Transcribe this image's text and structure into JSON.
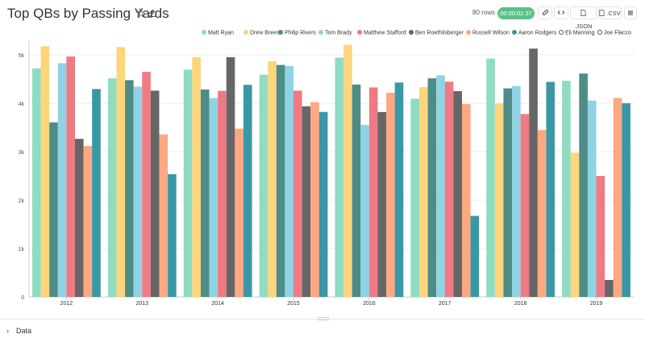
{
  "header": {
    "title": "Top QBs by Passing Yards",
    "rows": "80 rows",
    "timer": "00:00:02.37",
    "json_label": ".JSON",
    "csv_label": ".CSV"
  },
  "icons": {
    "star": "star-icon",
    "edit": "edit-icon",
    "link": "link-icon",
    "code": "code-icon",
    "menu": "menu-icon"
  },
  "footer": {
    "data_label": "Data"
  },
  "chart_data": {
    "type": "bar",
    "title": "Top QBs by Passing Yards",
    "categories": [
      "2012",
      "2013",
      "2014",
      "2015",
      "2016",
      "2017",
      "2018",
      "2019"
    ],
    "yticks": [
      0,
      1000,
      2000,
      3000,
      4000,
      5000
    ],
    "ytick_labels": [
      "0",
      "1k",
      "2k",
      "3k",
      "4k",
      "5k"
    ],
    "ylim": [
      0,
      5300
    ],
    "legend_position": "top-right",
    "series": [
      {
        "name": "Matt Ryan",
        "color": "#8fdcc2",
        "values": [
          4719,
          4515,
          4694,
          4591,
          4944,
          4095,
          4924,
          4466
        ]
      },
      {
        "name": "Drew Brees",
        "color": "#fcd57d",
        "values": [
          5177,
          5162,
          4952,
          4870,
          5208,
          4334,
          3992,
          2979
        ]
      },
      {
        "name": "Philip Rivers",
        "color": "#4d8d85",
        "values": [
          3606,
          4478,
          4286,
          4792,
          4386,
          4515,
          4308,
          4615
        ]
      },
      {
        "name": "Tom Brady",
        "color": "#8fd3e4",
        "values": [
          4827,
          4343,
          4109,
          4770,
          3554,
          4577,
          4355,
          4057
        ]
      },
      {
        "name": "Matthew Stafford",
        "color": "#ef7a83",
        "values": [
          4967,
          4650,
          4257,
          4262,
          4327,
          4446,
          3777,
          2499
        ]
      },
      {
        "name": "Ben Roethlisberger",
        "color": "#666666",
        "values": [
          3265,
          4261,
          4952,
          3938,
          3819,
          4251,
          5129,
          351
        ]
      },
      {
        "name": "Russell Wilson",
        "color": "#fca982",
        "values": [
          3118,
          3357,
          3475,
          4024,
          4219,
          3983,
          3448,
          4110
        ]
      },
      {
        "name": "Aaron Rodgers",
        "color": "#3a97a6",
        "values": [
          4295,
          2536,
          4381,
          3821,
          4428,
          1675,
          4442,
          4002
        ]
      },
      {
        "name": "Eli Manning",
        "color": "#ffffff",
        "values": [
          0,
          0,
          0,
          0,
          0,
          0,
          0,
          0
        ]
      },
      {
        "name": "Joe Flacco",
        "color": "#ffffff",
        "values": [
          0,
          0,
          0,
          0,
          0,
          0,
          0,
          0
        ]
      }
    ]
  }
}
